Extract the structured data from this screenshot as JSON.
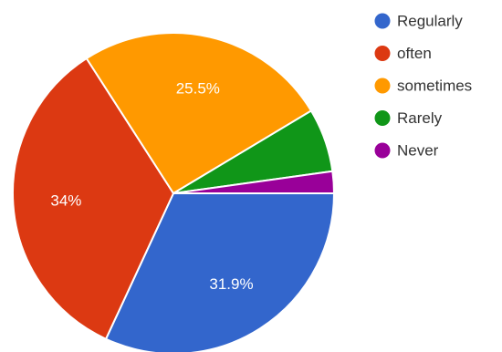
{
  "chart_data": {
    "type": "pie",
    "legend_position": "right",
    "slices": [
      {
        "label": "Regularly",
        "value": 31.9,
        "display": "31.9%",
        "color": "#3366cc",
        "show_label": true
      },
      {
        "label": "often",
        "value": 34.0,
        "display": "34%",
        "color": "#dc3912",
        "show_label": true
      },
      {
        "label": "sometimes",
        "value": 25.5,
        "display": "25.5%",
        "color": "#ff9900",
        "show_label": true
      },
      {
        "label": "Rarely",
        "value": 6.4,
        "display": "",
        "color": "#109618",
        "show_label": false
      },
      {
        "label": "Never",
        "value": 2.2,
        "display": "",
        "color": "#990099",
        "show_label": false
      }
    ]
  }
}
